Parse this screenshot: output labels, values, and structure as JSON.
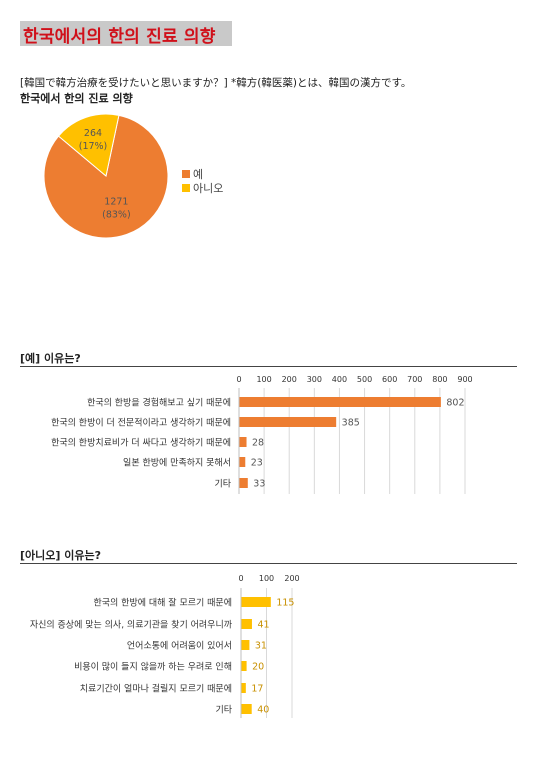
{
  "page": {
    "title": "한국에서의 한의 진료 의향",
    "question": "[韓国で韓方治療を受けたいと思いますか？] *韓方(韓医薬)とは、韓国の漢方です。"
  },
  "colors": {
    "orange": "#ED7D31",
    "yellow": "#FFC000",
    "title_red": "#D0101A",
    "title_bg": "#C9C9C9"
  },
  "chart_data": [
    {
      "type": "pie",
      "title": "한국에서 한의 진료 의향",
      "categories": [
        "예",
        "아니오"
      ],
      "values": [
        1271,
        264
      ],
      "percent_labels": [
        "(83%)",
        "(17%)"
      ],
      "colors": [
        "#ED7D31",
        "#FFC000"
      ],
      "legend": "right"
    },
    {
      "type": "bar",
      "orientation": "horizontal",
      "title": "[예] 이유는?",
      "categories": [
        "한국의 한방을 경험해보고 싶기 때문에",
        "한국의 한방이 더 전문적이라고 생각하기 때문에",
        "한국의 한방치료비가 더 싸다고 생각하기 때문에",
        "일본 한방에 만족하지 못해서",
        "기타"
      ],
      "values": [
        802,
        385,
        28,
        23,
        33
      ],
      "xlim": [
        0,
        900
      ],
      "ticks": [
        "0",
        "100",
        "200",
        "300",
        "400",
        "500",
        "600",
        "700",
        "800",
        "900"
      ],
      "color": "#ED7D31",
      "grid": true
    },
    {
      "type": "bar",
      "orientation": "horizontal",
      "title": "[아니오] 이유는?",
      "categories": [
        "한국의 한방에 대해 잘 모르기 때문에",
        "자신의 증상에 맞는 의사, 의료기관을 찾기 어려우니까",
        "언어소통에 어려움이 있어서",
        "비용이 많이 들지 않을까 하는 우려로 인해",
        "치료기간이 얼마나 걸릴지 모르기 때문에",
        "기타"
      ],
      "values": [
        115,
        41,
        31,
        20,
        17,
        40
      ],
      "xlim": [
        0,
        200
      ],
      "ticks": [
        "0",
        "100",
        "200"
      ],
      "color": "#FFC000",
      "grid": true
    }
  ]
}
